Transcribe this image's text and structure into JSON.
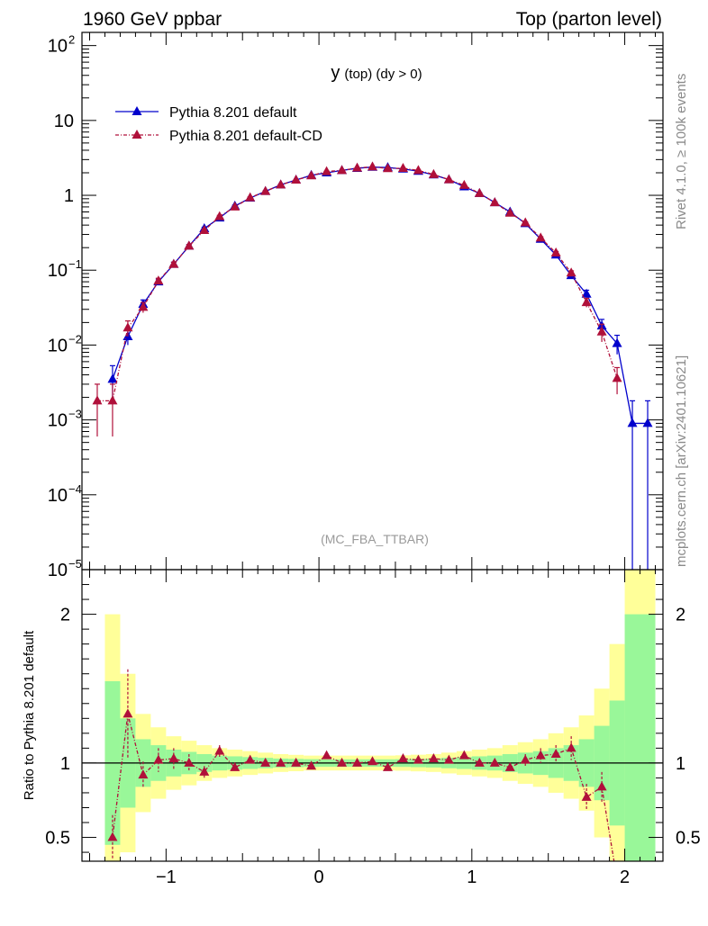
{
  "header": {
    "left": "1960 GeV ppbar",
    "right": "Top (parton level)"
  },
  "side_labels": {
    "rivet": "Rivet 4.1.0, ≥ 100k events",
    "mcplots": "mcplots.cern.ch [arXiv:2401.10621]"
  },
  "chart_data": {
    "type": "line",
    "title": "y (top) (dy > 0)",
    "title_main": "y",
    "title_rest": "(top) (dy > 0)",
    "watermark": "(MC_FBA_TTBAR)",
    "xlim": [
      -1.55,
      2.25
    ],
    "xticks": [
      -1,
      0,
      1,
      2
    ],
    "xtick_labels": [
      "−1",
      "0",
      "1",
      "2"
    ],
    "ylim_top": [
      1e-05,
      150
    ],
    "yticks_top": [
      {
        "v": 100,
        "base": "10",
        "exp": "2"
      },
      {
        "v": 10,
        "base": "10",
        "exp": ""
      },
      {
        "v": 1,
        "base": "1",
        "exp": ""
      },
      {
        "v": 0.1,
        "base": "10",
        "exp": "−1"
      },
      {
        "v": 0.01,
        "base": "10",
        "exp": "−2"
      },
      {
        "v": 0.001,
        "base": "10",
        "exp": "−3"
      },
      {
        "v": 0.0001,
        "base": "10",
        "exp": "−4"
      },
      {
        "v": 1e-05,
        "base": "10",
        "exp": "−5"
      }
    ],
    "ylim_ratio": [
      0.34,
      2.3
    ],
    "ratio_ylabel": "Ratio to Pythia 8.201 default",
    "ratio_yticks": [
      {
        "v": 0.5,
        "label": "0.5"
      },
      {
        "v": 1,
        "label": "1"
      },
      {
        "v": 2,
        "label": "2"
      }
    ],
    "series": [
      {
        "name": "Pythia 8.201 default",
        "color": "#0000cc",
        "x": [
          -1.35,
          -1.25,
          -1.15,
          -1.05,
          -0.95,
          -0.85,
          -0.75,
          -0.65,
          -0.55,
          -0.45,
          -0.35,
          -0.25,
          -0.15,
          -0.05,
          0.05,
          0.15,
          0.25,
          0.35,
          0.45,
          0.55,
          0.65,
          0.75,
          0.85,
          0.95,
          1.05,
          1.15,
          1.25,
          1.35,
          1.45,
          1.55,
          1.65,
          1.75,
          1.85,
          1.95,
          2.05,
          2.15
        ],
        "y": [
          0.0035,
          0.013,
          0.035,
          0.07,
          0.12,
          0.21,
          0.36,
          0.5,
          0.72,
          0.92,
          1.13,
          1.38,
          1.6,
          1.85,
          2.0,
          2.15,
          2.3,
          2.38,
          2.35,
          2.25,
          2.1,
          1.88,
          1.62,
          1.3,
          1.06,
          0.8,
          0.6,
          0.42,
          0.26,
          0.16,
          0.085,
          0.048,
          0.018,
          0.0105,
          0.0009,
          0.0009
        ],
        "yerr": [
          0.0018,
          0.003,
          0.005,
          0.006,
          0.008,
          0.01,
          0.015,
          0.02,
          0.02,
          0.02,
          0.02,
          0.02,
          0.02,
          0.02,
          0.02,
          0.02,
          0.02,
          0.02,
          0.02,
          0.02,
          0.02,
          0.02,
          0.02,
          0.02,
          0.02,
          0.02,
          0.015,
          0.012,
          0.01,
          0.008,
          0.006,
          0.006,
          0.004,
          0.003,
          0.0009,
          0.0009
        ]
      },
      {
        "name": "Pythia 8.201 default-CD",
        "color": "#b0103a",
        "x": [
          -1.45,
          -1.35,
          -1.25,
          -1.15,
          -1.05,
          -0.95,
          -0.85,
          -0.75,
          -0.65,
          -0.55,
          -0.45,
          -0.35,
          -0.25,
          -0.15,
          -0.05,
          0.05,
          0.15,
          0.25,
          0.35,
          0.45,
          0.55,
          0.65,
          0.75,
          0.85,
          0.95,
          1.05,
          1.15,
          1.25,
          1.35,
          1.45,
          1.55,
          1.65,
          1.75,
          1.85,
          1.95
        ],
        "y": [
          0.0018,
          0.0018,
          0.017,
          0.032,
          0.072,
          0.12,
          0.21,
          0.34,
          0.52,
          0.7,
          0.93,
          1.13,
          1.38,
          1.6,
          1.83,
          2.08,
          2.15,
          2.32,
          2.4,
          2.28,
          2.3,
          2.15,
          1.9,
          1.62,
          1.36,
          1.06,
          0.8,
          0.58,
          0.43,
          0.27,
          0.17,
          0.092,
          0.037,
          0.015,
          0.0036
        ],
        "yerr": [
          0.0012,
          0.0012,
          0.004,
          0.005,
          0.006,
          0.008,
          0.01,
          0.015,
          0.02,
          0.02,
          0.02,
          0.02,
          0.02,
          0.02,
          0.02,
          0.02,
          0.02,
          0.02,
          0.02,
          0.02,
          0.02,
          0.02,
          0.02,
          0.02,
          0.02,
          0.02,
          0.02,
          0.015,
          0.012,
          0.01,
          0.008,
          0.006,
          0.005,
          0.004,
          0.0014
        ]
      }
    ],
    "ratio": {
      "x": [
        -1.35,
        -1.25,
        -1.15,
        -1.05,
        -0.95,
        -0.85,
        -0.75,
        -0.65,
        -0.55,
        -0.45,
        -0.35,
        -0.25,
        -0.15,
        -0.05,
        0.05,
        0.15,
        0.25,
        0.35,
        0.45,
        0.55,
        0.65,
        0.75,
        0.85,
        0.95,
        1.05,
        1.15,
        1.25,
        1.35,
        1.45,
        1.55,
        1.65,
        1.75,
        1.85
      ],
      "y": [
        0.5,
        1.33,
        0.92,
        1.02,
        1.03,
        1.0,
        0.94,
        1.08,
        0.97,
        1.02,
        1.0,
        1.0,
        1.0,
        0.98,
        1.05,
        1.0,
        1.0,
        1.01,
        0.97,
        1.03,
        1.02,
        1.03,
        1.02,
        1.05,
        1.0,
        1.0,
        0.97,
        1.02,
        1.05,
        1.06,
        1.1,
        0.77,
        0.84
      ],
      "yerr": [
        0.15,
        0.3,
        0.09,
        0.08,
        0.07,
        0.06,
        0.04,
        0.04,
        0.03,
        0.03,
        0.02,
        0.02,
        0.02,
        0.02,
        0.02,
        0.02,
        0.02,
        0.02,
        0.02,
        0.02,
        0.02,
        0.02,
        0.02,
        0.03,
        0.03,
        0.03,
        0.03,
        0.04,
        0.05,
        0.06,
        0.08,
        0.09,
        0.1
      ]
    },
    "ratio_tail": {
      "x": [
        1.85,
        1.93
      ],
      "y": [
        0.84,
        0.34
      ]
    },
    "bands": {
      "edges": [
        -1.4,
        -1.3,
        -1.2,
        -1.1,
        -1.0,
        -0.9,
        -0.8,
        -0.7,
        -0.6,
        -0.5,
        -0.4,
        -0.3,
        -0.2,
        -0.1,
        0.0,
        0.1,
        0.2,
        0.3,
        0.4,
        0.5,
        0.6,
        0.7,
        0.8,
        0.9,
        1.0,
        1.1,
        1.2,
        1.3,
        1.4,
        1.5,
        1.6,
        1.7,
        1.8,
        1.9,
        2.0,
        2.2
      ],
      "green": [
        0.55,
        0.3,
        0.16,
        0.12,
        0.09,
        0.075,
        0.06,
        0.05,
        0.045,
        0.04,
        0.035,
        0.03,
        0.028,
        0.026,
        0.025,
        0.025,
        0.025,
        0.025,
        0.025,
        0.026,
        0.028,
        0.03,
        0.035,
        0.04,
        0.045,
        0.05,
        0.06,
        0.07,
        0.08,
        0.1,
        0.12,
        0.16,
        0.25,
        0.42,
        1.0
      ],
      "yellow": [
        1.0,
        0.6,
        0.33,
        0.24,
        0.18,
        0.15,
        0.12,
        0.1,
        0.09,
        0.08,
        0.07,
        0.06,
        0.055,
        0.05,
        0.05,
        0.05,
        0.05,
        0.05,
        0.05,
        0.052,
        0.056,
        0.06,
        0.07,
        0.08,
        0.09,
        0.1,
        0.12,
        0.14,
        0.16,
        0.2,
        0.24,
        0.32,
        0.5,
        0.8,
        1.4
      ],
      "green_color": "#99f799",
      "yellow_color": "#ffff99"
    }
  }
}
